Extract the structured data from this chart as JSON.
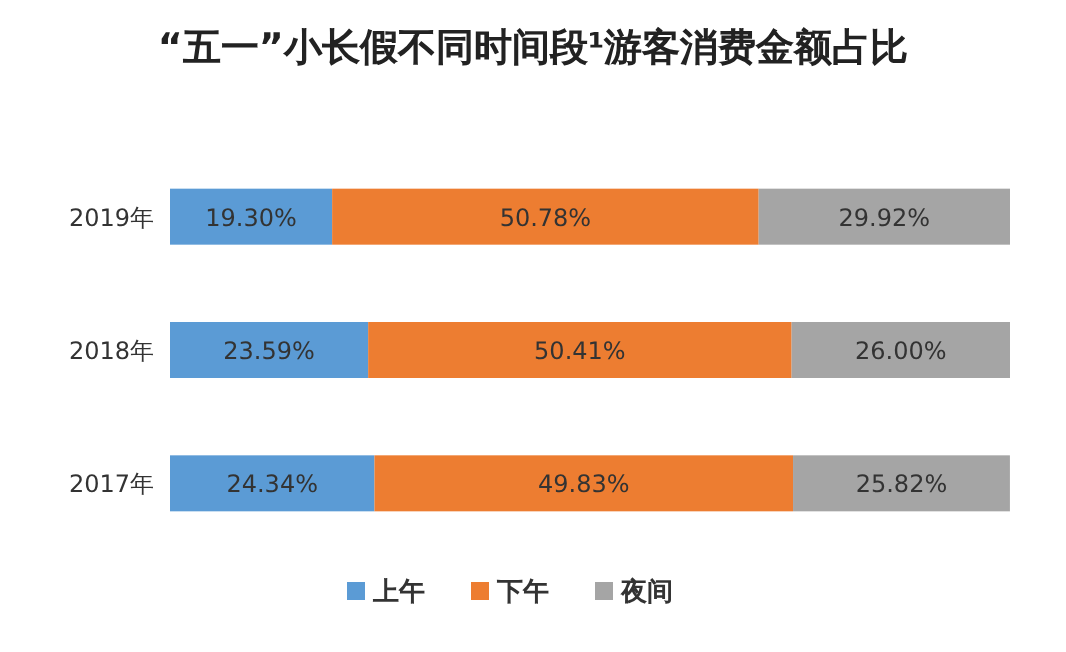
{
  "chart_data": {
    "type": "bar",
    "orientation": "horizontal",
    "stacked": true,
    "title": "“五一”小长假不同时间段¹游客消费金额占比",
    "categories": [
      "2019年",
      "2018年",
      "2017年"
    ],
    "xlim": [
      0,
      100
    ],
    "tick_labels": "y",
    "legend": "bottom",
    "series": [
      {
        "name": "上午",
        "color": "#5b9bd5",
        "values": [
          19.3,
          23.59,
          24.34
        ],
        "value_labels": [
          "19.30%",
          "23.59%",
          "24.34%"
        ]
      },
      {
        "name": "下午",
        "color": "#ed7d31",
        "values": [
          50.78,
          50.41,
          49.83
        ],
        "value_labels": [
          "50.78%",
          "50.41%",
          "49.83%"
        ]
      },
      {
        "name": "夜间",
        "color": "#a5a5a5",
        "values": [
          29.92,
          26.0,
          25.82
        ],
        "value_labels": [
          "29.92%",
          "26.00%",
          "25.82%"
        ]
      }
    ]
  }
}
